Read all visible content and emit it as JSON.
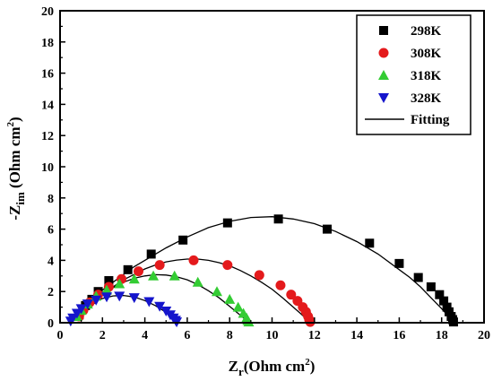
{
  "chart_data": {
    "type": "scatter",
    "xlabel": {
      "main": "Z",
      "sub": "r",
      "rest": "(Ohm cm",
      "sup": "2",
      "close": ")"
    },
    "ylabel": {
      "main": "-Z",
      "sub": "im",
      "rest": " (Ohm cm",
      "sup": "2",
      "close": ")"
    },
    "xlim": [
      0,
      20
    ],
    "ylim": [
      0,
      20
    ],
    "xticks": [
      "0",
      "2",
      "4",
      "6",
      "8",
      "10",
      "12",
      "14",
      "16",
      "18",
      "20"
    ],
    "yticks": [
      "0",
      "2",
      "4",
      "6",
      "8",
      "10",
      "12",
      "14",
      "16",
      "18",
      "20"
    ],
    "grid": false,
    "legend_position": "top-right",
    "series": [
      {
        "name": "298K",
        "marker": "square",
        "color": "#000000",
        "x": [
          0.9,
          1.2,
          1.5,
          1.8,
          2.3,
          3.2,
          4.3,
          5.8,
          7.9,
          10.3,
          12.6,
          14.6,
          16.0,
          16.9,
          17.5,
          17.9,
          18.1,
          18.25,
          18.35,
          18.45,
          18.52,
          18.56
        ],
        "y": [
          0.5,
          1.1,
          1.5,
          2.0,
          2.7,
          3.4,
          4.4,
          5.3,
          6.4,
          6.65,
          6.0,
          5.1,
          3.8,
          2.9,
          2.3,
          1.8,
          1.4,
          1.0,
          0.7,
          0.4,
          0.2,
          0.05
        ]
      },
      {
        "name": "308K",
        "marker": "circle",
        "color": "#e41a1c",
        "x": [
          0.9,
          1.1,
          1.4,
          1.8,
          2.3,
          2.9,
          3.7,
          4.7,
          6.3,
          7.9,
          9.4,
          10.4,
          10.9,
          11.2,
          11.45,
          11.6,
          11.7,
          11.75,
          11.8
        ],
        "y": [
          0.4,
          0.8,
          1.3,
          1.8,
          2.3,
          2.8,
          3.3,
          3.7,
          4.0,
          3.7,
          3.05,
          2.4,
          1.8,
          1.4,
          1.0,
          0.7,
          0.4,
          0.2,
          0.05
        ]
      },
      {
        "name": "318K",
        "marker": "triangle-up",
        "color": "#33cc33",
        "x": [
          0.8,
          1.0,
          1.3,
          1.7,
          2.2,
          2.8,
          3.5,
          4.4,
          5.4,
          6.5,
          7.4,
          8.0,
          8.4,
          8.65,
          8.8,
          8.85,
          8.9
        ],
        "y": [
          0.4,
          0.8,
          1.2,
          1.7,
          2.1,
          2.5,
          2.8,
          3.0,
          3.0,
          2.6,
          2.0,
          1.5,
          1.0,
          0.6,
          0.3,
          0.15,
          0.05
        ]
      },
      {
        "name": "328K",
        "marker": "triangle-down",
        "color": "#1515cc",
        "x": [
          0.5,
          0.6,
          0.8,
          1.0,
          1.3,
          1.7,
          2.2,
          2.8,
          3.5,
          4.2,
          4.7,
          5.0,
          5.2,
          5.35,
          5.45,
          5.5
        ],
        "y": [
          0.1,
          0.3,
          0.6,
          0.9,
          1.2,
          1.45,
          1.65,
          1.7,
          1.6,
          1.35,
          1.05,
          0.75,
          0.5,
          0.3,
          0.15,
          0.05
        ]
      }
    ],
    "fits": [
      {
        "x": [
          0.8,
          1.2,
          1.6,
          2.0,
          2.5,
          3,
          3.5,
          4,
          5,
          6,
          7,
          8,
          9,
          10,
          11,
          12,
          13,
          14,
          15,
          16,
          16.5,
          17,
          17.5,
          18,
          18.3,
          18.5,
          18.6
        ],
        "y": [
          0.3,
          1.1,
          1.6,
          2.1,
          2.6,
          3.1,
          3.6,
          4.0,
          4.8,
          5.5,
          6.1,
          6.5,
          6.75,
          6.8,
          6.65,
          6.35,
          5.85,
          5.2,
          4.4,
          3.4,
          2.9,
          2.3,
          1.6,
          0.9,
          0.45,
          0.15,
          0.0
        ]
      },
      {
        "x": [
          0.8,
          1.2,
          1.6,
          2,
          2.5,
          3,
          3.5,
          4,
          4.5,
          5,
          5.5,
          6,
          6.5,
          7,
          7.5,
          8,
          8.5,
          9,
          9.5,
          10,
          10.5,
          11,
          11.3,
          11.5,
          11.7,
          11.8
        ],
        "y": [
          0.3,
          0.9,
          1.4,
          1.85,
          2.3,
          2.75,
          3.1,
          3.45,
          3.7,
          3.9,
          4.02,
          4.08,
          4.08,
          4.0,
          3.85,
          3.65,
          3.35,
          3.0,
          2.6,
          2.15,
          1.6,
          1.0,
          0.65,
          0.4,
          0.15,
          0.0
        ]
      },
      {
        "x": [
          0.7,
          1,
          1.5,
          2,
          2.5,
          3,
          3.5,
          4,
          4.5,
          5,
          5.5,
          6,
          6.5,
          7,
          7.5,
          8,
          8.4,
          8.7,
          8.9
        ],
        "y": [
          0.2,
          0.65,
          1.25,
          1.8,
          2.25,
          2.6,
          2.85,
          3.0,
          3.08,
          3.06,
          2.95,
          2.75,
          2.45,
          2.05,
          1.6,
          1.05,
          0.6,
          0.25,
          0.0
        ]
      },
      {
        "x": [
          0.4,
          0.6,
          0.9,
          1.2,
          1.6,
          2,
          2.5,
          3,
          3.5,
          4,
          4.5,
          4.9,
          5.2,
          5.4,
          5.55
        ],
        "y": [
          0.0,
          0.35,
          0.75,
          1.05,
          1.35,
          1.55,
          1.72,
          1.75,
          1.65,
          1.42,
          1.1,
          0.75,
          0.45,
          0.2,
          0.0
        ]
      }
    ],
    "legend": {
      "fitting_label": "Fitting"
    }
  }
}
